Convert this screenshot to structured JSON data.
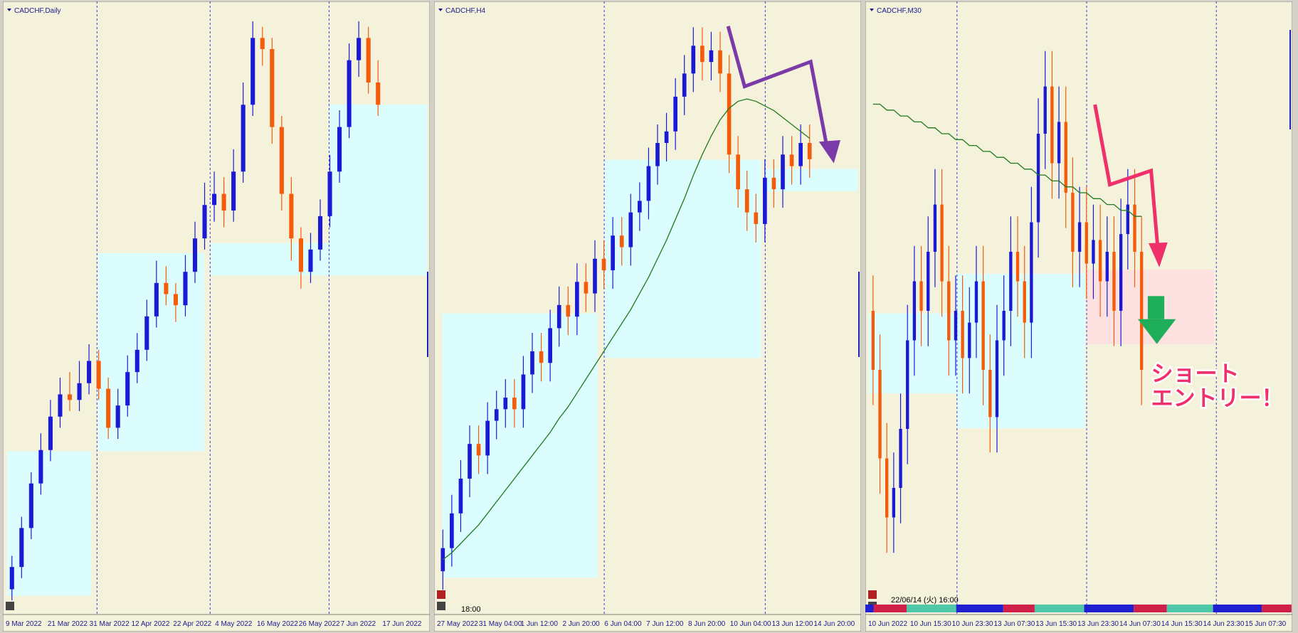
{
  "chart_data": [
    {
      "type": "candlestick",
      "title": "CADCHF,Daily",
      "xticks": [
        "9 Mar 2022",
        "21 Mar 2022",
        "31 Mar 2022",
        "12 Apr 2022",
        "22 Apr 2022",
        "4 May 2022",
        "16 May 2022",
        "26 May 2022",
        "7 Jun 2022",
        "17 Jun 2022"
      ],
      "ylim": [
        0.719,
        0.772
      ],
      "up_color": "#1a1ad6",
      "down_color": "#f25c0a",
      "candles": [
        [
          0.7205,
          0.7235,
          0.7195,
          0.7225
        ],
        [
          0.7225,
          0.727,
          0.7215,
          0.726
        ],
        [
          0.726,
          0.731,
          0.725,
          0.73
        ],
        [
          0.73,
          0.7345,
          0.729,
          0.733
        ],
        [
          0.733,
          0.7375,
          0.732,
          0.736
        ],
        [
          0.736,
          0.7395,
          0.735,
          0.738
        ],
        [
          0.738,
          0.74,
          0.7365,
          0.7375
        ],
        [
          0.7375,
          0.741,
          0.7365,
          0.739
        ],
        [
          0.739,
          0.7425,
          0.738,
          0.741
        ],
        [
          0.741,
          0.742,
          0.7375,
          0.7385
        ],
        [
          0.7385,
          0.7395,
          0.734,
          0.735
        ],
        [
          0.735,
          0.7385,
          0.734,
          0.737
        ],
        [
          0.737,
          0.7415,
          0.736,
          0.74
        ],
        [
          0.74,
          0.7435,
          0.739,
          0.742
        ],
        [
          0.742,
          0.7465,
          0.741,
          0.745
        ],
        [
          0.745,
          0.75,
          0.744,
          0.748
        ],
        [
          0.748,
          0.7495,
          0.746,
          0.747
        ],
        [
          0.747,
          0.748,
          0.7445,
          0.746
        ],
        [
          0.746,
          0.7505,
          0.745,
          0.749
        ],
        [
          0.749,
          0.7535,
          0.748,
          0.752
        ],
        [
          0.752,
          0.757,
          0.751,
          0.755
        ],
        [
          0.755,
          0.758,
          0.7535,
          0.756
        ],
        [
          0.756,
          0.7575,
          0.753,
          0.7545
        ],
        [
          0.7545,
          0.76,
          0.7535,
          0.758
        ],
        [
          0.758,
          0.766,
          0.757,
          0.764
        ],
        [
          0.764,
          0.7715,
          0.763,
          0.77
        ],
        [
          0.77,
          0.771,
          0.7675,
          0.769
        ],
        [
          0.769,
          0.77,
          0.7605,
          0.762
        ],
        [
          0.762,
          0.763,
          0.7545,
          0.756
        ],
        [
          0.756,
          0.7575,
          0.75,
          0.752
        ],
        [
          0.752,
          0.753,
          0.7475,
          0.749
        ],
        [
          0.749,
          0.7525,
          0.748,
          0.751
        ],
        [
          0.751,
          0.7555,
          0.75,
          0.754
        ],
        [
          0.754,
          0.7595,
          0.753,
          0.758
        ],
        [
          0.758,
          0.7635,
          0.757,
          0.762
        ],
        [
          0.762,
          0.7695,
          0.761,
          0.768
        ],
        [
          0.768,
          0.7715,
          0.7665,
          0.77
        ],
        [
          0.77,
          0.771,
          0.765,
          0.766
        ],
        [
          0.766,
          0.768,
          0.763,
          0.764
        ]
      ]
    },
    {
      "type": "candlestick",
      "title": "CADCHF,H4",
      "xticks": [
        "27 May 2022",
        "31 May 04:00",
        "1 Jun 12:00",
        "2 Jun 20:00",
        "6 Jun 04:00",
        "7 Jun 12:00",
        "8 Jun 20:00",
        "10 Jun 04:00",
        "13 Jun 12:00",
        "14 Jun 20:00"
      ],
      "ylim": [
        0.747,
        0.7725
      ],
      "up_color": "#1a1ad6",
      "down_color": "#f25c0a",
      "ma_color": "#1f7a1f",
      "status": "18:00",
      "candles": [
        [
          0.7485,
          0.7503,
          0.7477,
          0.7495
        ],
        [
          0.7495,
          0.7518,
          0.7487,
          0.751
        ],
        [
          0.751,
          0.7533,
          0.7502,
          0.7525
        ],
        [
          0.7525,
          0.7548,
          0.7517,
          0.754
        ],
        [
          0.754,
          0.7548,
          0.7527,
          0.7535
        ],
        [
          0.7535,
          0.7558,
          0.7527,
          0.755
        ],
        [
          0.755,
          0.7563,
          0.7542,
          0.7555
        ],
        [
          0.7555,
          0.7568,
          0.7547,
          0.756
        ],
        [
          0.756,
          0.7568,
          0.7547,
          0.7555
        ],
        [
          0.7555,
          0.7578,
          0.7547,
          0.757
        ],
        [
          0.757,
          0.7588,
          0.7562,
          0.758
        ],
        [
          0.758,
          0.7588,
          0.7567,
          0.7575
        ],
        [
          0.7575,
          0.7598,
          0.7567,
          0.759
        ],
        [
          0.759,
          0.7608,
          0.7582,
          0.76
        ],
        [
          0.76,
          0.7608,
          0.7587,
          0.7595
        ],
        [
          0.7595,
          0.7618,
          0.7587,
          0.761
        ],
        [
          0.761,
          0.7618,
          0.7597,
          0.7605
        ],
        [
          0.7605,
          0.7628,
          0.7597,
          0.762
        ],
        [
          0.762,
          0.7628,
          0.7607,
          0.7615
        ],
        [
          0.7615,
          0.7638,
          0.7607,
          0.763
        ],
        [
          0.763,
          0.7638,
          0.7617,
          0.7625
        ],
        [
          0.7625,
          0.7648,
          0.7617,
          0.764
        ],
        [
          0.764,
          0.7653,
          0.7632,
          0.7645
        ],
        [
          0.7645,
          0.7668,
          0.7637,
          0.766
        ],
        [
          0.766,
          0.7678,
          0.7652,
          0.767
        ],
        [
          0.767,
          0.7683,
          0.7662,
          0.7675
        ],
        [
          0.7675,
          0.7698,
          0.7667,
          0.769
        ],
        [
          0.769,
          0.7708,
          0.7682,
          0.77
        ],
        [
          0.77,
          0.772,
          0.7692,
          0.7712
        ],
        [
          0.7712,
          0.772,
          0.7697,
          0.7705
        ],
        [
          0.7705,
          0.7718,
          0.7697,
          0.771
        ],
        [
          0.771,
          0.7718,
          0.7692,
          0.77
        ],
        [
          0.77,
          0.7708,
          0.7657,
          0.7665
        ],
        [
          0.7665,
          0.7673,
          0.7642,
          0.765
        ],
        [
          0.765,
          0.7658,
          0.7632,
          0.764
        ],
        [
          0.764,
          0.7648,
          0.7627,
          0.7635
        ],
        [
          0.7635,
          0.7663,
          0.7627,
          0.7655
        ],
        [
          0.7655,
          0.7663,
          0.7642,
          0.765
        ],
        [
          0.765,
          0.7673,
          0.7642,
          0.7665
        ],
        [
          0.7665,
          0.7673,
          0.7652,
          0.766
        ],
        [
          0.766,
          0.7678,
          0.7652,
          0.767
        ],
        [
          0.767,
          0.7678,
          0.7655,
          0.7663
        ]
      ],
      "ma": [
        0.749,
        0.7493,
        0.7497,
        0.7501,
        0.7505,
        0.751,
        0.7515,
        0.752,
        0.7525,
        0.753,
        0.7535,
        0.754,
        0.7545,
        0.7551,
        0.7556,
        0.7562,
        0.7568,
        0.7574,
        0.758,
        0.7586,
        0.7592,
        0.7598,
        0.7605,
        0.7612,
        0.762,
        0.7628,
        0.7637,
        0.7646,
        0.7656,
        0.7665,
        0.7673,
        0.768,
        0.7685,
        0.7688,
        0.7689,
        0.7688,
        0.7686,
        0.7684,
        0.7681,
        0.7678,
        0.7675,
        0.7672
      ]
    },
    {
      "type": "candlestick",
      "title": "CADCHF,M30",
      "xticks": [
        "10 Jun 2022",
        "10 Jun 15:30",
        "10 Jun 23:30",
        "13 Jun 07:30",
        "13 Jun 15:30",
        "13 Jun 23:30",
        "14 Jun 07:30",
        "14 Jun 15:30",
        "14 Jun 23:30",
        "15 Jun 07:30"
      ],
      "ylim": [
        0.76,
        0.77
      ],
      "up_color": "#1a1ad6",
      "down_color": "#f25c0a",
      "ma_color": "#1f7a1f",
      "status": "22/06/14 (火) 16:00",
      "annotation": [
        "ショート",
        "エントリー！"
      ],
      "candles": [
        [
          0.765,
          0.7656,
          0.7634,
          0.764
        ],
        [
          0.764,
          0.7646,
          0.7619,
          0.7625
        ],
        [
          0.7625,
          0.7631,
          0.7609,
          0.7615
        ],
        [
          0.7615,
          0.7626,
          0.7609,
          0.762
        ],
        [
          0.762,
          0.7636,
          0.7614,
          0.763
        ],
        [
          0.763,
          0.7651,
          0.7624,
          0.7645
        ],
        [
          0.7645,
          0.7661,
          0.7639,
          0.7655
        ],
        [
          0.7655,
          0.7661,
          0.7644,
          0.765
        ],
        [
          0.765,
          0.7666,
          0.7644,
          0.766
        ],
        [
          0.766,
          0.7674,
          0.7654,
          0.7668
        ],
        [
          0.7668,
          0.7674,
          0.7649,
          0.7655
        ],
        [
          0.7655,
          0.7661,
          0.7639,
          0.7645
        ],
        [
          0.7645,
          0.7656,
          0.7639,
          0.765
        ],
        [
          0.765,
          0.7656,
          0.7636,
          0.7642
        ],
        [
          0.7642,
          0.7654,
          0.7636,
          0.7648
        ],
        [
          0.7648,
          0.7661,
          0.7642,
          0.7655
        ],
        [
          0.7655,
          0.7661,
          0.7634,
          0.764
        ],
        [
          0.764,
          0.7646,
          0.7626,
          0.7632
        ],
        [
          0.7632,
          0.7651,
          0.7626,
          0.7645
        ],
        [
          0.7645,
          0.7656,
          0.7639,
          0.765
        ],
        [
          0.765,
          0.7666,
          0.7644,
          0.766
        ],
        [
          0.766,
          0.7666,
          0.7649,
          0.7655
        ],
        [
          0.7655,
          0.7661,
          0.7642,
          0.7648
        ],
        [
          0.7648,
          0.7671,
          0.7642,
          0.7665
        ],
        [
          0.7665,
          0.7686,
          0.7659,
          0.768
        ],
        [
          0.768,
          0.7694,
          0.7674,
          0.7688
        ],
        [
          0.7688,
          0.7694,
          0.7669,
          0.7675
        ],
        [
          0.7675,
          0.7688,
          0.7669,
          0.7682
        ],
        [
          0.7682,
          0.7688,
          0.7664,
          0.767
        ],
        [
          0.767,
          0.7676,
          0.7654,
          0.766
        ],
        [
          0.766,
          0.7671,
          0.7654,
          0.7665
        ],
        [
          0.7665,
          0.7671,
          0.7652,
          0.7658
        ],
        [
          0.7658,
          0.7668,
          0.7652,
          0.7662
        ],
        [
          0.7662,
          0.7668,
          0.7649,
          0.7655
        ],
        [
          0.7655,
          0.7666,
          0.7649,
          0.766
        ],
        [
          0.766,
          0.7666,
          0.7644,
          0.765
        ],
        [
          0.765,
          0.7669,
          0.7644,
          0.7663
        ],
        [
          0.7663,
          0.7674,
          0.7657,
          0.7668
        ],
        [
          0.7668,
          0.7674,
          0.7654,
          0.766
        ],
        [
          0.766,
          0.7666,
          0.7634,
          0.764
        ]
      ],
      "ma": [
        0.7685,
        0.7685,
        0.7684,
        0.7684,
        0.7683,
        0.7683,
        0.7682,
        0.7682,
        0.7681,
        0.7681,
        0.768,
        0.768,
        0.7679,
        0.7679,
        0.7678,
        0.7678,
        0.7677,
        0.7677,
        0.7676,
        0.7676,
        0.7675,
        0.7675,
        0.7674,
        0.7674,
        0.7673,
        0.7673,
        0.7672,
        0.7672,
        0.7671,
        0.7671,
        0.767,
        0.767,
        0.7669,
        0.7669,
        0.7668,
        0.7668,
        0.7667,
        0.7667,
        0.7666,
        0.7666
      ]
    }
  ]
}
